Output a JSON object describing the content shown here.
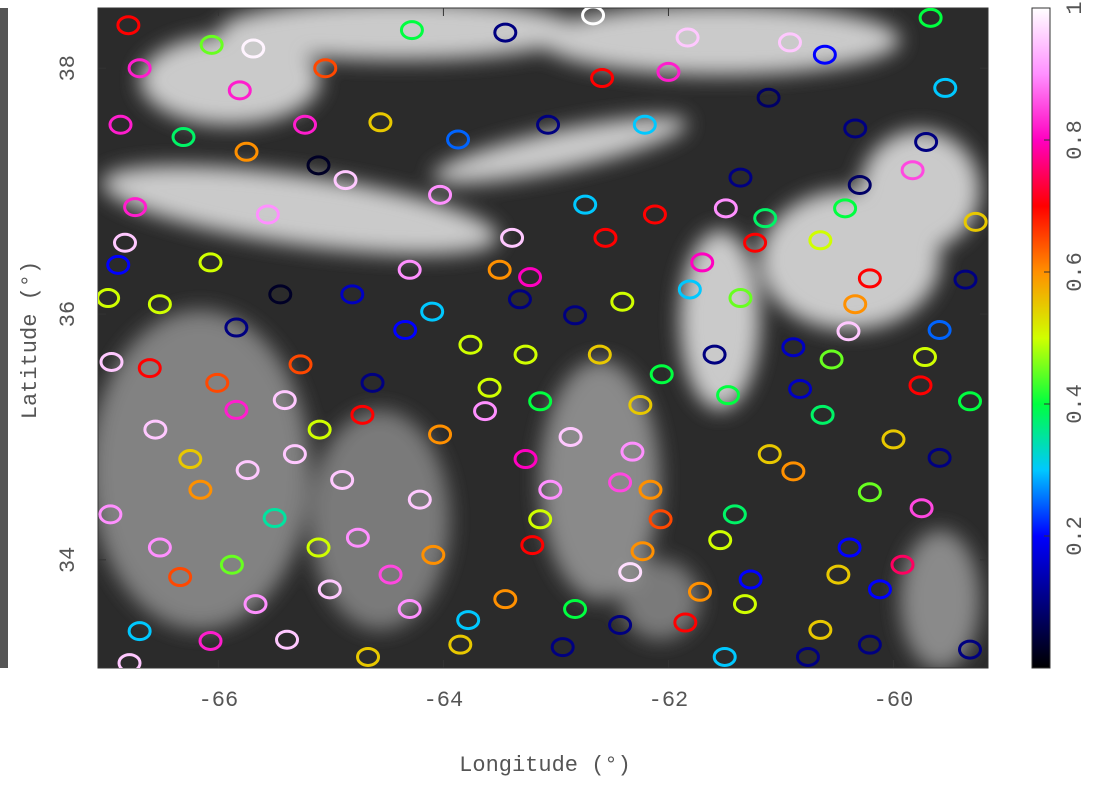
{
  "chart_data": {
    "type": "scatter",
    "xlabel": "Longitude (°)",
    "ylabel": "Latitude (°)",
    "xlim": [
      -67.07,
      -59.16
    ],
    "xticks": [
      -66,
      -64,
      -62,
      -60
    ],
    "ylim": [
      33.12,
      38.49
    ],
    "yticks": [
      34,
      36,
      38
    ],
    "clim": [
      0,
      1
    ],
    "cticks": [
      0.2,
      0.4,
      0.6,
      0.8,
      1
    ],
    "colorscale": [
      "#000000",
      "#000080",
      "#0000ff",
      "#00c8ff",
      "#00ff40",
      "#d0ff00",
      "#ff9000",
      "#ff0000",
      "#ff00c0",
      "#ff90ff",
      "#ffffff"
    ],
    "x": [
      -66.8,
      -66.06,
      -65.69,
      -65.05,
      -64.28,
      -63.45,
      -62.67,
      -61.83,
      -60.92,
      -59.67,
      -60.61,
      -59.54,
      -61.11,
      -62.0,
      -62.59,
      -66.7,
      -65.81,
      -65.23,
      -66.87,
      -66.31,
      -65.75,
      -65.11,
      -64.56,
      -63.87,
      -63.07,
      -62.21,
      -60.34,
      -59.71,
      -59.83,
      -60.3,
      -60.43,
      -59.27,
      -61.14,
      -61.49,
      -61.36,
      -62.12,
      -62.74,
      -66.74,
      -65.56,
      -64.87,
      -64.03,
      -63.39,
      -66.83,
      -66.89,
      -66.07,
      -65.45,
      -64.81,
      -64.3,
      -63.5,
      -63.23,
      -62.56,
      -61.7,
      -61.23,
      -60.65,
      -60.21,
      -59.36,
      -60.34,
      -60.4,
      -66.98,
      -66.52,
      -65.84,
      -64.1,
      -63.32,
      -62.41,
      -61.81,
      -61.36,
      -62.83,
      -63.76,
      -64.34,
      -59.59,
      -59.72,
      -60.89,
      -60.55,
      -61.59,
      -62.61,
      -63.27,
      -63.59,
      -64.63,
      -65.27,
      -66.95,
      -66.61,
      -66.01,
      -65.84,
      -65.41,
      -64.72,
      -65.1,
      -64.03,
      -63.63,
      -63.14,
      -63.27,
      -62.87,
      -62.25,
      -62.06,
      -61.47,
      -60.83,
      -59.76,
      -59.32,
      -60.0,
      -59.59,
      -60.63,
      -61.1,
      -60.89,
      -60.21,
      -59.75,
      -59.92,
      -60.39,
      -60.49,
      -60.12,
      -60.65,
      -60.21,
      -59.32,
      -60.76,
      -61.41,
      -61.54,
      -61.27,
      -61.32,
      -61.72,
      -61.85,
      -61.5,
      -62.43,
      -62.94,
      -62.07,
      -62.16,
      -62.32,
      -62.43,
      -62.34,
      -62.23,
      -62.83,
      -63.05,
      -63.14,
      -63.21,
      -63.45,
      -63.78,
      -63.85,
      -64.3,
      -64.09,
      -64.21,
      -64.47,
      -64.9,
      -64.76,
      -65.11,
      -65.01,
      -65.39,
      -64.67,
      -65.32,
      -65.74,
      -66.25,
      -66.56,
      -66.16,
      -66.96,
      -66.52,
      -66.34,
      -65.88,
      -65.5,
      -66.7,
      -66.07,
      -66.79,
      -65.67
    ],
    "y": [
      38.35,
      38.19,
      38.16,
      38.0,
      38.31,
      38.29,
      38.43,
      38.25,
      38.21,
      38.41,
      38.11,
      37.84,
      37.76,
      37.97,
      37.92,
      38.0,
      37.82,
      37.54,
      37.54,
      37.44,
      37.32,
      37.21,
      37.56,
      37.42,
      37.54,
      37.54,
      37.51,
      37.4,
      37.17,
      37.05,
      36.86,
      36.75,
      36.78,
      36.86,
      37.11,
      36.81,
      36.89,
      36.87,
      36.81,
      37.09,
      36.97,
      36.62,
      36.58,
      36.4,
      36.42,
      36.16,
      36.16,
      36.36,
      36.36,
      36.3,
      36.62,
      36.42,
      36.58,
      36.6,
      36.29,
      36.28,
      36.08,
      35.86,
      36.13,
      36.08,
      35.89,
      36.02,
      36.12,
      36.1,
      36.2,
      36.13,
      35.99,
      35.75,
      35.87,
      35.87,
      35.65,
      35.73,
      35.63,
      35.67,
      35.67,
      35.67,
      35.4,
      35.44,
      35.59,
      35.61,
      35.56,
      35.44,
      35.22,
      35.3,
      35.18,
      35.06,
      35.02,
      35.21,
      35.29,
      34.82,
      35.0,
      35.26,
      35.51,
      35.34,
      35.39,
      35.42,
      35.29,
      34.98,
      34.83,
      35.18,
      34.86,
      34.72,
      34.55,
      34.42,
      33.96,
      34.1,
      33.88,
      33.76,
      33.43,
      33.31,
      33.27,
      33.21,
      34.37,
      34.16,
      33.84,
      33.64,
      33.74,
      33.49,
      33.21,
      33.47,
      33.29,
      34.33,
      34.57,
      34.88,
      34.63,
      33.9,
      34.07,
      33.6,
      34.57,
      34.33,
      34.12,
      33.68,
      33.51,
      33.31,
      33.6,
      34.04,
      34.49,
      33.88,
      34.65,
      34.18,
      34.1,
      33.76,
      33.35,
      33.21,
      34.86,
      34.73,
      34.82,
      35.06,
      34.57,
      34.37,
      34.1,
      33.86,
      33.96,
      34.34,
      33.42,
      33.34,
      33.16,
      33.64
    ],
    "values": [
      0.7,
      0.45,
      0.99,
      0.65,
      0.4,
      0.1,
      1,
      0.95,
      0.95,
      0.4,
      0.2,
      0.3,
      0.08,
      0.82,
      0.7,
      0.82,
      0.82,
      0.82,
      0.82,
      0.38,
      0.6,
      0.03,
      0.55,
      0.25,
      0.1,
      0.3,
      0.1,
      0.1,
      0.85,
      0.08,
      0.4,
      0.55,
      0.38,
      0.9,
      0.1,
      0.7,
      0.3,
      0.82,
      0.9,
      0.95,
      0.9,
      0.95,
      0.95,
      0.2,
      0.5,
      0.03,
      0.15,
      0.9,
      0.6,
      0.8,
      0.7,
      0.8,
      0.7,
      0.5,
      0.7,
      0.1,
      0.6,
      0.95,
      0.5,
      0.5,
      0.1,
      0.3,
      0.1,
      0.5,
      0.3,
      0.45,
      0.1,
      0.5,
      0.2,
      0.25,
      0.5,
      0.15,
      0.45,
      0.1,
      0.55,
      0.5,
      0.5,
      0.1,
      0.65,
      0.95,
      0.7,
      0.65,
      0.82,
      0.95,
      0.7,
      0.5,
      0.6,
      0.9,
      0.4,
      0.8,
      0.95,
      0.55,
      0.4,
      0.4,
      0.15,
      0.7,
      0.4,
      0.55,
      0.1,
      0.38,
      0.55,
      0.6,
      0.45,
      0.85,
      0.75,
      0.2,
      0.55,
      0.2,
      0.55,
      0.1,
      0.1,
      0.1,
      0.38,
      0.5,
      0.2,
      0.5,
      0.6,
      0.7,
      0.3,
      0.1,
      0.1,
      0.65,
      0.6,
      0.9,
      0.85,
      0.97,
      0.6,
      0.4,
      0.9,
      0.5,
      0.7,
      0.6,
      0.3,
      0.55,
      0.9,
      0.6,
      0.95,
      0.85,
      0.95,
      0.9,
      0.5,
      0.95,
      0.95,
      0.55,
      0.95,
      0.95,
      0.55,
      0.95,
      0.6,
      0.9,
      0.9,
      0.65,
      0.45,
      0.35,
      0.3,
      0.82,
      0.95,
      0.9
    ]
  }
}
